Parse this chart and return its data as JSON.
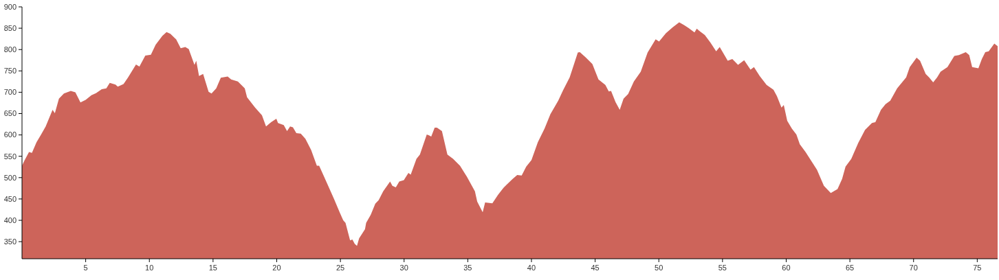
{
  "chart_data": {
    "type": "area",
    "color": "#cd645a",
    "x": [
      0,
      0.19,
      0.55,
      0.78,
      1.14,
      1.5,
      1.86,
      2.4,
      2.58,
      2.9,
      3.29,
      3.83,
      4.19,
      4.59,
      5.0,
      5.45,
      5.81,
      6.26,
      6.62,
      6.89,
      7.34,
      7.52,
      7.97,
      8.33,
      8.95,
      9.22,
      9.68,
      10.12,
      10.49,
      11.02,
      11.35,
      11.65,
      12.1,
      12.46,
      12.82,
      13.09,
      13.54,
      13.68,
      13.9,
      14.22,
      14.65,
      14.88,
      15.25,
      15.61,
      16.15,
      16.42,
      16.95,
      17.49,
      17.67,
      18.3,
      18.84,
      19.16,
      19.56,
      19.97,
      20.1,
      20.55,
      20.81,
      21.05,
      21.27,
      21.54,
      21.89,
      22.25,
      22.7,
      23.15,
      23.33,
      23.96,
      24.5,
      24.95,
      25.22,
      25.4,
      25.76,
      25.94,
      26.12,
      26.3,
      26.47,
      26.93,
      27.02,
      27.38,
      27.74,
      28.0,
      28.36,
      28.9,
      29.08,
      29.35,
      29.62,
      29.98,
      30.34,
      30.52,
      30.97,
      31.24,
      31.78,
      31.96,
      32.13,
      32.4,
      32.58,
      32.97,
      33.4,
      33.85,
      34.39,
      34.93,
      35.56,
      35.74,
      36.17,
      36.36,
      36.93,
      37.38,
      37.8,
      38.07,
      38.52,
      38.88,
      39.23,
      39.59,
      40.0,
      40.5,
      41.03,
      41.49,
      42.1,
      42.47,
      43.0,
      43.64,
      43.8,
      44.25,
      44.78,
      45.26,
      45.8,
      46.07,
      46.25,
      46.6,
      46.93,
      47.23,
      47.59,
      48.04,
      48.58,
      49.12,
      49.75,
      50.02,
      50.55,
      51.09,
      51.6,
      52.0,
      52.35,
      52.8,
      52.98,
      53.25,
      53.61,
      54.06,
      54.5,
      54.78,
      55.41,
      55.77,
      56.22,
      56.7,
      57.2,
      57.47,
      57.92,
      58.46,
      59.0,
      59.27,
      59.63,
      59.81,
      60.08,
      60.44,
      60.8,
      61.07,
      61.52,
      61.97,
      62.42,
      62.96,
      63.5,
      64.03,
      64.39,
      64.66,
      65.11,
      65.65,
      66.19,
      66.73,
      67.0,
      67.44,
      67.8,
      68.17,
      68.71,
      69.42,
      69.7,
      70.24,
      70.51,
      70.95,
      71.22,
      71.54,
      71.85,
      72.12,
      72.66,
      73.2,
      73.56,
      74.1,
      74.37,
      74.6,
      75.09,
      75.36,
      75.63,
      75.9,
      76.34,
      76.6
    ],
    "values": [
      528,
      540,
      560,
      558,
      583,
      601,
      620,
      659,
      651,
      685,
      697,
      703,
      700,
      676,
      682,
      693,
      698,
      707,
      709,
      722,
      718,
      713,
      719,
      735,
      765,
      760,
      786,
      788,
      811,
      832,
      841,
      837,
      824,
      803,
      806,
      801,
      764,
      774,
      738,
      743,
      701,
      697,
      709,
      734,
      737,
      730,
      725,
      709,
      688,
      664,
      646,
      620,
      630,
      638,
      628,
      623,
      609,
      620,
      618,
      604,
      603,
      591,
      565,
      528,
      528,
      486,
      450,
      418,
      400,
      394,
      353,
      355,
      345,
      340,
      358,
      379,
      394,
      413,
      439,
      447,
      468,
      491,
      481,
      477,
      491,
      494,
      511,
      507,
      544,
      554,
      601,
      599,
      596,
      617,
      617,
      609,
      554,
      544,
      528,
      502,
      468,
      444,
      419,
      442,
      440,
      460,
      476,
      484,
      497,
      506,
      505,
      526,
      541,
      583,
      615,
      649,
      680,
      704,
      735,
      793,
      794,
      782,
      766,
      730,
      717,
      702,
      703,
      677,
      659,
      685,
      696,
      725,
      748,
      793,
      824,
      819,
      838,
      852,
      864,
      857,
      850,
      840,
      849,
      842,
      834,
      816,
      796,
      806,
      774,
      778,
      764,
      775,
      753,
      759,
      738,
      717,
      706,
      691,
      664,
      670,
      633,
      615,
      601,
      578,
      560,
      539,
      518,
      481,
      464,
      473,
      497,
      526,
      544,
      581,
      612,
      628,
      630,
      659,
      672,
      680,
      709,
      735,
      759,
      781,
      774,
      743,
      735,
      723,
      735,
      748,
      759,
      785,
      787,
      794,
      787,
      759,
      756,
      778,
      794,
      796,
      814,
      808
    ],
    "xlim": [
      0,
      76.6
    ],
    "ylim": [
      310,
      900
    ],
    "xticks": [
      5,
      10,
      15,
      20,
      25,
      30,
      35,
      40,
      45,
      50,
      55,
      60,
      65,
      70,
      75
    ],
    "yticks": [
      350,
      400,
      450,
      500,
      550,
      600,
      650,
      700,
      750,
      800,
      850,
      900
    ]
  }
}
